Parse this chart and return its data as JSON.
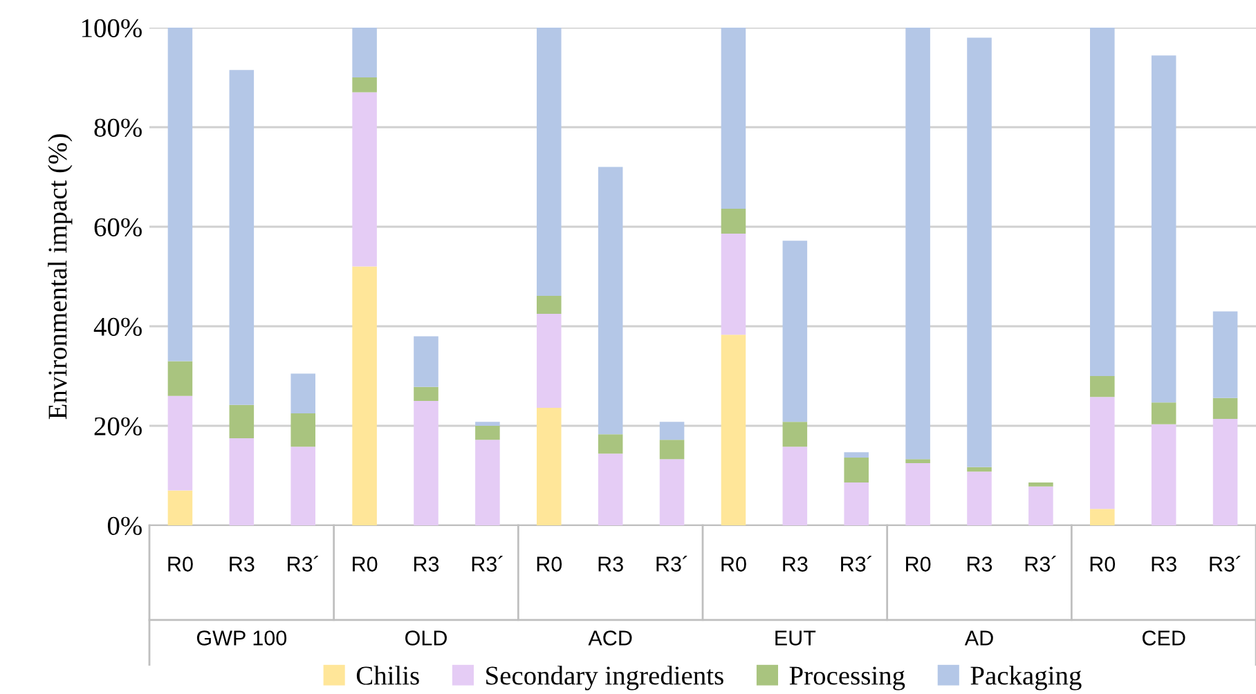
{
  "chart_data": {
    "type": "bar",
    "stacked": true,
    "ylabel": "Environmental impact (%)",
    "categories": [
      "R0",
      "R3",
      "R3´",
      "R0",
      "R3",
      "R3´",
      "R0",
      "R3",
      "R3´",
      "R0",
      "R3",
      "R3´",
      "R0",
      "R3",
      "R3´",
      "R0",
      "R3",
      "R3´"
    ],
    "annotations": [
      "GWP 100",
      "OLD",
      "ACD",
      "EUT",
      "AD",
      "CED"
    ],
    "series": [
      {
        "name": "Chilis",
        "color": "#ffe699",
        "values": [
          7,
          0,
          0,
          52,
          0,
          0,
          23.6,
          0,
          0,
          38.3,
          0,
          0,
          0,
          0,
          0,
          3.3,
          0,
          0
        ]
      },
      {
        "name": "Secondary ingredients",
        "color": "#e5ccf5",
        "values": [
          19,
          17.5,
          15.8,
          35,
          25,
          17.2,
          18.9,
          14.4,
          13.3,
          20.3,
          15.8,
          8.6,
          12.5,
          10.8,
          7.8,
          22.5,
          20.3,
          21.4
        ]
      },
      {
        "name": "Processing",
        "color": "#a9c47f",
        "values": [
          7,
          6.7,
          6.7,
          3,
          2.8,
          2.8,
          3.6,
          3.9,
          3.9,
          5,
          5,
          5,
          0.8,
          0.9,
          0.8,
          4.2,
          4.4,
          4.2
        ]
      },
      {
        "name": "Packaging",
        "color": "#b4c7e7",
        "values": [
          67,
          67.3,
          8,
          10,
          10.2,
          0.8,
          53.9,
          53.7,
          3.6,
          36.4,
          36.4,
          1.1,
          86.7,
          86.3,
          0,
          70,
          69.7,
          17.4
        ]
      }
    ],
    "ylim": [
      0,
      100
    ],
    "yticks": [
      {
        "value": 0,
        "label": "0%"
      },
      {
        "value": 20,
        "label": "20%"
      },
      {
        "value": 40,
        "label": "40%"
      },
      {
        "value": 60,
        "label": "60%"
      },
      {
        "value": 80,
        "label": "80%"
      },
      {
        "value": 100,
        "label": "100%"
      }
    ],
    "grid": "y",
    "legend": "bottom"
  }
}
